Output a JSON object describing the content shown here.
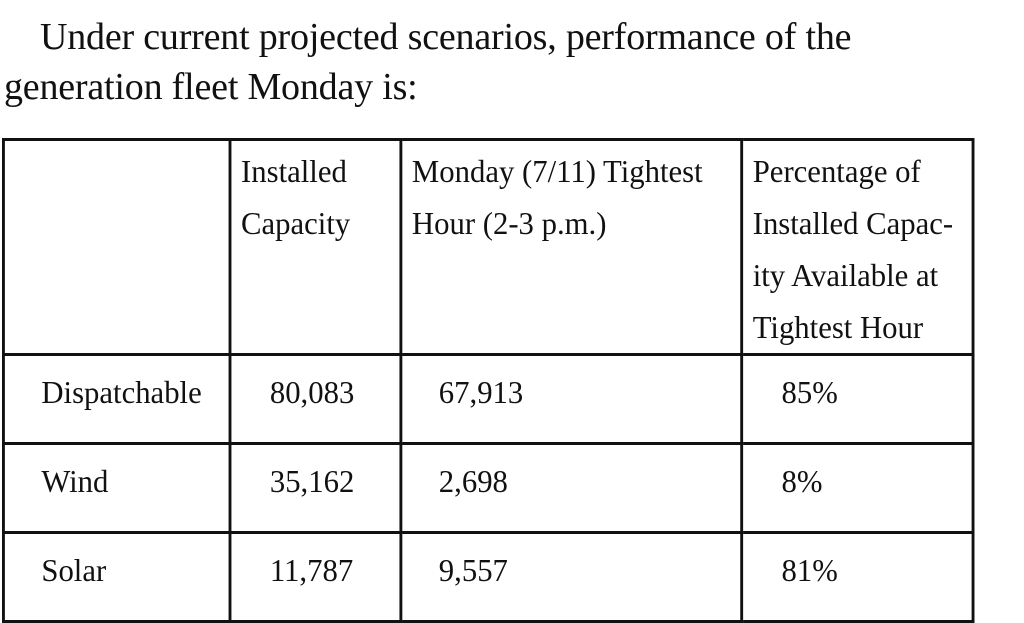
{
  "intro": {
    "line1": "Under current projected scenarios, performance of the",
    "line2": "generation fleet Monday is:"
  },
  "table": {
    "headers": [
      "",
      "Installed Capacity",
      "Monday (7/11) Tightest Hour (2-3 p.m.)",
      "Percentage of Installed Capac-ity Available at Tightest Hour"
    ],
    "rows": [
      {
        "label": "Dispatchable",
        "installed": "80,083",
        "tightest": "67,913",
        "percent": "85%"
      },
      {
        "label": "Wind",
        "installed": "35,162",
        "tightest": "2,698",
        "percent": "8%"
      },
      {
        "label": "Solar",
        "installed": "11,787",
        "tightest": "9,557",
        "percent": "81%"
      }
    ]
  }
}
